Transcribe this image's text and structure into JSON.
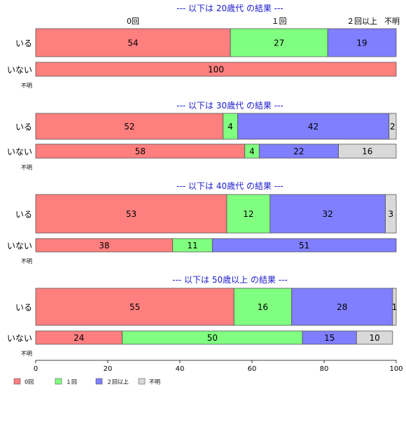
{
  "chart_data": {
    "type": "bar",
    "orientation": "horizontal",
    "stacked": true,
    "percent": true,
    "xlim": [
      0,
      100
    ],
    "xticks": [
      "0",
      "20",
      "40",
      "60",
      "80",
      "100"
    ],
    "category_labels": [
      "0回",
      "１回",
      "２回以上",
      "不明"
    ],
    "legend": {
      "placement": "bottom-left",
      "entries": [
        "0回",
        "１回",
        "２回以上",
        "不明"
      ]
    },
    "colors": {
      "0回": "#ff7f7f",
      "１回": "#80ff80",
      "２回以上": "#7f7fff",
      "不明": "#d9d9d9"
    },
    "panels": [
      {
        "title": "--- 以下は 20歳代 の結果 ---",
        "rows": [
          {
            "label": "いる",
            "values": [
              54,
              27,
              19,
              0
            ],
            "labels": [
              "54",
              "27",
              "19",
              ""
            ]
          },
          {
            "label": "いない",
            "values": [
              100,
              0,
              0,
              0
            ],
            "labels": [
              "100",
              "",
              "",
              ""
            ]
          },
          {
            "label": "不明",
            "values": [],
            "labels": []
          }
        ]
      },
      {
        "title": "--- 以下は 30歳代 の結果 ---",
        "rows": [
          {
            "label": "いる",
            "values": [
              52,
              4,
              42,
              2
            ],
            "labels": [
              "52",
              "4",
              "42",
              "2"
            ]
          },
          {
            "label": "いない",
            "values": [
              58,
              4,
              22,
              16
            ],
            "labels": [
              "58",
              "4",
              "22",
              "16"
            ]
          },
          {
            "label": "不明",
            "values": [],
            "labels": []
          }
        ]
      },
      {
        "title": "--- 以下は 40歳代 の結果 ---",
        "rows": [
          {
            "label": "いる",
            "values": [
              53,
              12,
              32,
              3
            ],
            "labels": [
              "53",
              "12",
              "32",
              "3"
            ]
          },
          {
            "label": "いない",
            "values": [
              38,
              11,
              51,
              0
            ],
            "labels": [
              "38",
              "11",
              "51",
              ""
            ]
          },
          {
            "label": "不明",
            "values": [],
            "labels": []
          }
        ]
      },
      {
        "title": "--- 以下は 50歳以上 の結果 ---",
        "rows": [
          {
            "label": "いる",
            "values": [
              55,
              16,
              28,
              1
            ],
            "labels": [
              "55",
              "16",
              "28",
              "1"
            ]
          },
          {
            "label": "いない",
            "values": [
              24,
              50,
              15,
              10
            ],
            "labels": [
              "24",
              "50",
              "15",
              "10"
            ]
          },
          {
            "label": "不明",
            "values": [],
            "labels": []
          }
        ]
      }
    ]
  }
}
